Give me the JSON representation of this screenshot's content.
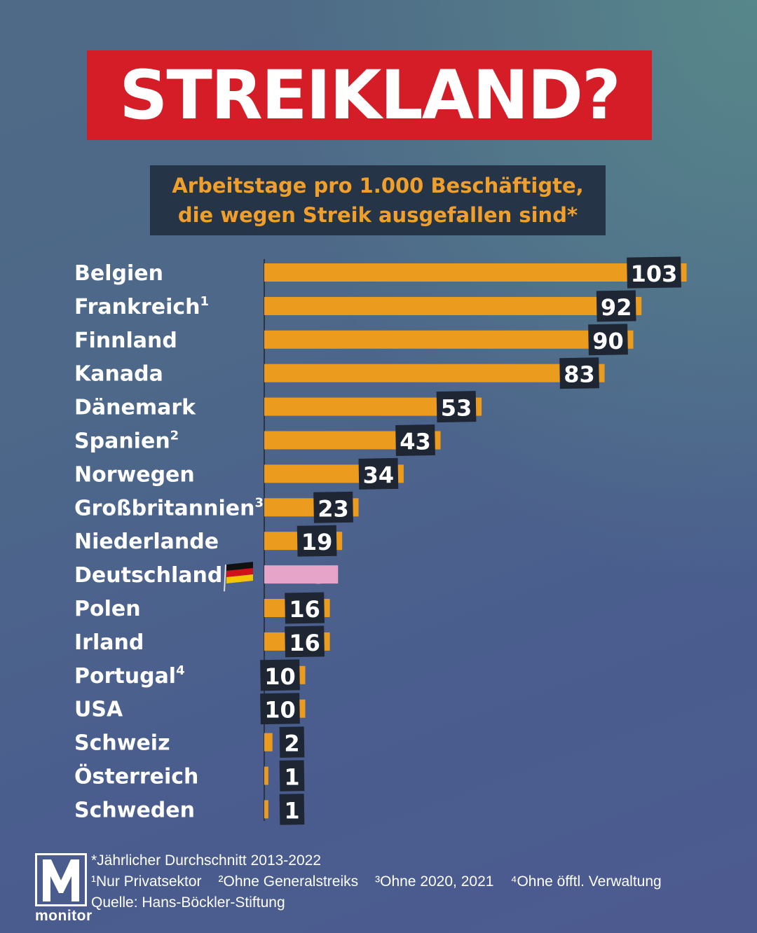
{
  "header": {
    "title": "STREIKLAND?",
    "subtitle_line1": "Arbeitstage pro 1.000 Beschäftigte,",
    "subtitle_line2": "die wegen Streik ausgefallen sind*"
  },
  "colors": {
    "bar": "#eb9c1f",
    "highlight_bar": "#e6a4c8",
    "value_box": "#1e2634",
    "title_red": "#d41d27"
  },
  "chart_data": {
    "type": "bar",
    "orientation": "horizontal",
    "categories": [
      "Belgien",
      "Frankreich",
      "Finnland",
      "Kanada",
      "Dänemark",
      "Spanien",
      "Norwegen",
      "Großbritannien",
      "Niederlande",
      "Deutschland",
      "Polen",
      "Irland",
      "Portugal",
      "USA",
      "Schweiz",
      "Österreich",
      "Schweden"
    ],
    "footnote_marks": [
      "",
      "1",
      "",
      "",
      "",
      "2",
      "",
      "3",
      "",
      "",
      "",
      "",
      "4",
      "",
      "",
      "",
      ""
    ],
    "values": [
      103,
      92,
      90,
      83,
      53,
      43,
      34,
      23,
      19,
      18,
      16,
      16,
      10,
      10,
      2,
      1,
      1
    ],
    "highlight": "Deutschland",
    "highlight_icon": "german-flag-icon",
    "title": "STREIKLAND?",
    "xlabel": "",
    "ylabel": "",
    "grid": false,
    "legend": "none"
  },
  "footnotes": {
    "asterisk": "*Jährlicher Durchschnitt 2013-2022",
    "note1": "¹Nur Privatsektor",
    "note2": "²Ohne Generalstreiks",
    "note3": "³Ohne 2020, 2021",
    "note4": "⁴Ohne öfftl. Verwaltung",
    "source": "Quelle: Hans-Böckler-Stiftung"
  },
  "logo": {
    "wordmark": "monitor",
    "icon": "monitor-m-logo-icon"
  }
}
